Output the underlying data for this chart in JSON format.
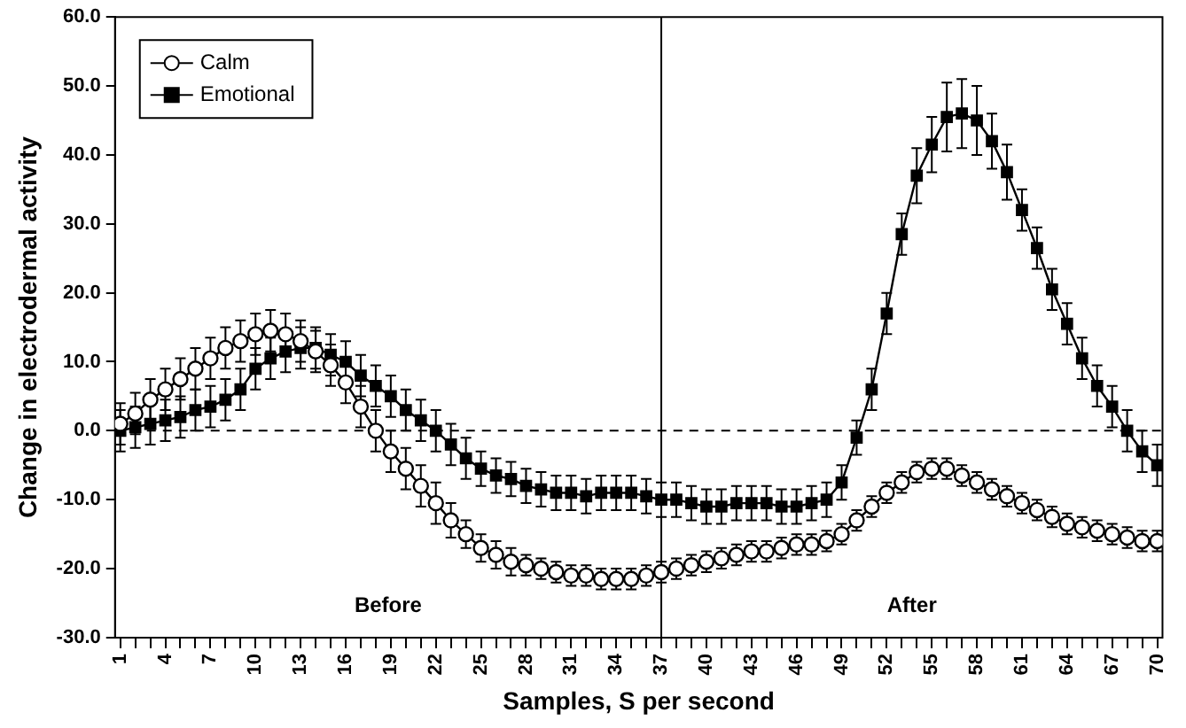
{
  "chart_data": {
    "type": "line",
    "xlabel": "Samples, S per second",
    "ylabel": "Change in electrodermal activity",
    "categories": [
      "1",
      null,
      null,
      "4",
      null,
      null,
      "7",
      null,
      null,
      "10",
      null,
      null,
      "13",
      null,
      null,
      "16",
      null,
      null,
      "19",
      null,
      null,
      "22",
      null,
      null,
      "25",
      null,
      null,
      "28",
      null,
      null,
      "31",
      null,
      null,
      "34",
      null,
      null,
      "37",
      null,
      null,
      "40",
      null,
      null,
      "43",
      null,
      null,
      "46",
      null,
      null,
      "49",
      null,
      null,
      "52",
      null,
      null,
      "55",
      null,
      null,
      "58",
      null,
      null,
      "61",
      null,
      null,
      "64",
      null,
      null,
      "67",
      null,
      null,
      "70"
    ],
    "series": [
      {
        "name": "Calm",
        "color": "#000000",
        "marker": "circle",
        "values": [
          1,
          2.5,
          4.5,
          6,
          7.5,
          9,
          10.5,
          12,
          13,
          14,
          14.5,
          14,
          13,
          11.5,
          9.5,
          7,
          3.5,
          0,
          -3,
          -5.5,
          -8,
          -10.5,
          -13,
          -15,
          -17,
          -18,
          -19,
          -19.5,
          -20,
          -20.5,
          -21,
          -21,
          -21.5,
          -21.5,
          -21.5,
          -21,
          -20.5,
          -20,
          -19.5,
          -19,
          -18.5,
          -18,
          -17.5,
          -17.5,
          -17,
          -16.5,
          -16.5,
          -16,
          -15,
          -13,
          -11,
          -9,
          -7.5,
          -6,
          -5.5,
          -5.5,
          -6.5,
          -7.5,
          -8.5,
          -9.5,
          -10.5,
          -11.5,
          -12.5,
          -13.5,
          -14,
          -14.5,
          -15,
          -15.5,
          -16,
          -16
        ],
        "errors": [
          3,
          3,
          3,
          3,
          3,
          3,
          3,
          3,
          3,
          3,
          3,
          3,
          3,
          3,
          3,
          3,
          3,
          3,
          3,
          3,
          3,
          3,
          2.5,
          2,
          2,
          2,
          2,
          1.5,
          1.5,
          1.5,
          1.5,
          1.5,
          1.5,
          1.5,
          1.5,
          1.5,
          1.5,
          1.5,
          1.5,
          1.5,
          1.5,
          1.5,
          1.5,
          1.5,
          1.5,
          1.5,
          1.5,
          1.5,
          1.5,
          1.5,
          1.5,
          1.5,
          1.5,
          1.5,
          1.5,
          1.5,
          1.5,
          1.5,
          1.5,
          1.5,
          1.5,
          1.5,
          1.5,
          1.5,
          1.5,
          1.5,
          1.5,
          1.5,
          1.5,
          1.5
        ]
      },
      {
        "name": "Emotional",
        "color": "#000000",
        "marker": "square",
        "values": [
          0,
          0.5,
          1,
          1.5,
          2,
          3,
          3.5,
          4.5,
          6,
          9,
          10.5,
          11.5,
          12,
          12,
          11,
          10,
          8,
          6.5,
          5,
          3,
          1.5,
          0,
          -2,
          -4,
          -5.5,
          -6.5,
          -7,
          -8,
          -8.5,
          -9,
          -9,
          -9.5,
          -9,
          -9,
          -9,
          -9.5,
          -10,
          -10,
          -10.5,
          -11,
          -11,
          -10.5,
          -10.5,
          -10.5,
          -11,
          -11,
          -10.5,
          -10,
          -7.5,
          -1,
          6,
          17,
          28.5,
          37,
          41.5,
          45.5,
          46,
          45,
          42,
          37.5,
          32,
          26.5,
          20.5,
          15.5,
          10.5,
          6.5,
          3.5,
          0,
          -3,
          -5
        ],
        "errors": [
          3,
          3,
          3,
          3,
          3,
          3,
          3,
          3,
          3,
          3,
          3,
          3,
          3,
          3,
          3,
          3,
          3,
          3,
          3,
          3,
          3,
          3,
          3,
          3,
          2.5,
          2.5,
          2.5,
          2.5,
          2.5,
          2.5,
          2.5,
          2.5,
          2.5,
          2.5,
          2.5,
          2.5,
          2.5,
          2.5,
          2.5,
          2.5,
          2.5,
          2.5,
          2.5,
          2.5,
          2.5,
          2.5,
          2.5,
          2.5,
          2.5,
          2.5,
          3,
          3,
          3,
          4,
          4,
          5,
          5,
          5,
          4,
          4,
          3,
          3,
          3,
          3,
          3,
          3,
          3,
          3,
          3,
          3
        ]
      }
    ],
    "ylim": [
      -30,
      60
    ],
    "yticks": [
      {
        "value": -30,
        "label": "-30.0"
      },
      {
        "value": -20,
        "label": "-20.0"
      },
      {
        "value": -10,
        "label": "-10.0"
      },
      {
        "value": 0,
        "label": "0.0"
      },
      {
        "value": 10,
        "label": "10.0"
      },
      {
        "value": 20,
        "label": "20.0"
      },
      {
        "value": 30,
        "label": "30.0"
      },
      {
        "value": 40,
        "label": "40.0"
      },
      {
        "value": 50,
        "label": "50.0"
      },
      {
        "value": 60,
        "label": "60.0"
      }
    ],
    "ref_lines": [
      {
        "axis": "y",
        "value": 0,
        "line_style": "dashed"
      },
      {
        "axis": "x",
        "value": "37",
        "line_style": "solid"
      }
    ],
    "annotations": [
      "Before",
      "After"
    ],
    "grid": false,
    "legend": "top left",
    "line_style": "solid"
  }
}
